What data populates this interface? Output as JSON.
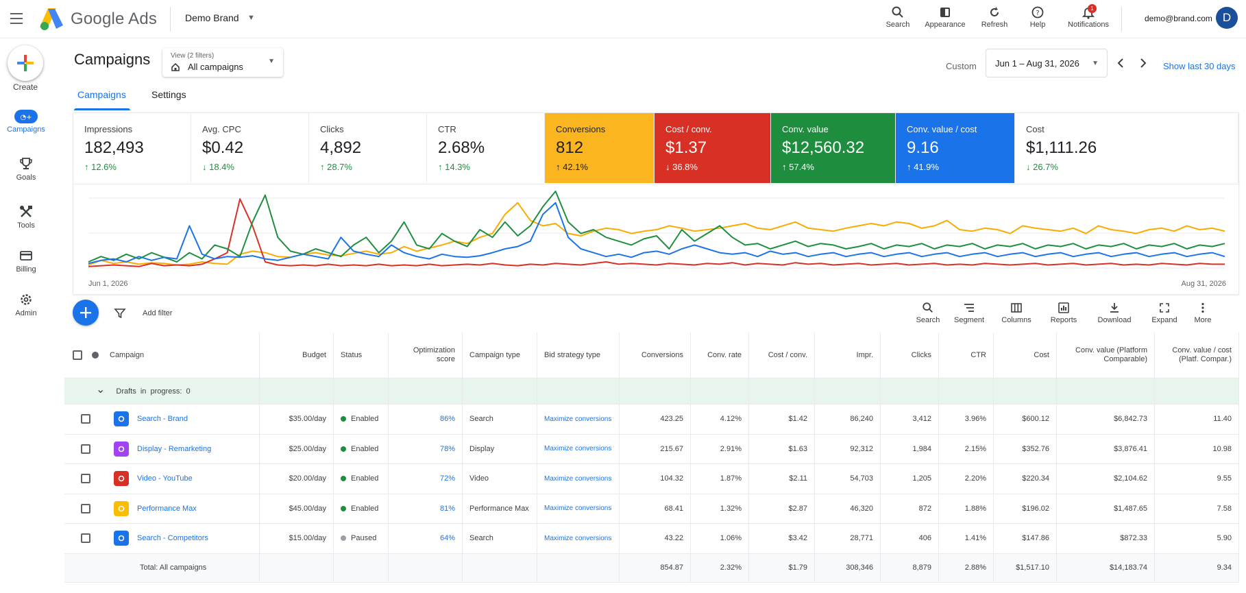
{
  "app": {
    "product_name": "Google Ads",
    "account_name": "Demo Brand",
    "user_email": "demo@brand.com",
    "avatar_letter": "D",
    "notification_count": "1"
  },
  "top_tools": [
    {
      "label": "Search",
      "icon": "search-icon"
    },
    {
      "label": "Appearance",
      "icon": "appearance-icon"
    },
    {
      "label": "Refresh",
      "icon": "refresh-icon"
    },
    {
      "label": "Help",
      "icon": "help-icon"
    },
    {
      "label": "Notifications",
      "icon": "bell-icon"
    }
  ],
  "rail": {
    "create_label": "Create",
    "items": [
      {
        "label": "Campaigns",
        "icon": "campaigns-icon"
      },
      {
        "label": "Goals",
        "icon": "trophy-icon"
      },
      {
        "label": "Tools",
        "icon": "tools-icon"
      },
      {
        "label": "Billing",
        "icon": "credit-card-icon"
      },
      {
        "label": "Admin",
        "icon": "gear-icon"
      }
    ]
  },
  "header": {
    "title": "Campaigns",
    "view_sub": "View (2 filters)",
    "view_value": "All campaigns",
    "custom_label": "Custom",
    "date_range": "Jun 1 – Aug 31, 2026",
    "last_30": "Show last 30 days"
  },
  "tabs": [
    {
      "label": "Campaigns"
    },
    {
      "label": "Settings"
    }
  ],
  "metrics": [
    {
      "label": "Impressions",
      "value": "182,493",
      "change": "↑ 12.6%",
      "bg": "#ffffff"
    },
    {
      "label": "Avg. CPC",
      "value": "$0.42",
      "change": "↓ 18.4%",
      "bg": "#ffffff"
    },
    {
      "label": "Clicks",
      "value": "4,892",
      "change": "↑ 28.7%",
      "bg": "#ffffff"
    },
    {
      "label": "CTR",
      "value": "2.68%",
      "change": "↑ 14.3%",
      "bg": "#ffffff"
    },
    {
      "label": "Conversions",
      "value": "812",
      "change": "↑ 42.1%",
      "bg": "#fbb61f"
    },
    {
      "label": "Cost / conv.",
      "value": "$1.37",
      "change": "↓ 36.8%",
      "bg": "#d93025"
    },
    {
      "label": "Conv. value",
      "value": "$12,560.32",
      "change": "↑ 57.4%",
      "bg": "#1e8e3e"
    },
    {
      "label": "Conv. value / cost",
      "value": "9.16",
      "change": "↑ 41.9%",
      "bg": "#1a73e8"
    },
    {
      "label": "Cost",
      "value": "$1,111.26",
      "change": "↓ 26.7%",
      "bg": "#ffffff"
    }
  ],
  "chart_data": {
    "type": "line",
    "x_start": "Jun 1, 2026",
    "x_end": "Aug 31, 2026",
    "colors": {
      "yellow": "#f9ab00",
      "red": "#d93025",
      "green": "#1e8e3e",
      "blue": "#1a73e8"
    },
    "series": [
      {
        "color": "yellow",
        "values": [
          4,
          10,
          6,
          8,
          5,
          7,
          6,
          4,
          5,
          8,
          6,
          5,
          18,
          22,
          20,
          15,
          14,
          18,
          20,
          17,
          16,
          19,
          22,
          18,
          20,
          28,
          22,
          26,
          30,
          35,
          32,
          40,
          45,
          70,
          85,
          62,
          55,
          58,
          45,
          42,
          48,
          52,
          50,
          45,
          48,
          50,
          55,
          52,
          48,
          50,
          52,
          55,
          58,
          52,
          50,
          55,
          60,
          52,
          50,
          48,
          52,
          55,
          58,
          55,
          60,
          58,
          52,
          55,
          62,
          50,
          48,
          52,
          50,
          45,
          55,
          52,
          50,
          48,
          52,
          45,
          55,
          50,
          48,
          45,
          50,
          52,
          48,
          55,
          50,
          52,
          48
        ]
      },
      {
        "color": "red",
        "values": [
          2,
          3,
          4,
          3,
          2,
          6,
          3,
          4,
          3,
          5,
          12,
          20,
          90,
          55,
          8,
          4,
          3,
          4,
          3,
          5,
          3,
          4,
          3,
          5,
          3,
          4,
          3,
          5,
          3,
          4,
          5,
          4,
          6,
          4,
          3,
          5,
          4,
          6,
          5,
          4,
          6,
          8,
          5,
          6,
          5,
          4,
          6,
          5,
          4,
          6,
          5,
          7,
          4,
          6,
          5,
          4,
          7,
          5,
          6,
          4,
          5,
          6,
          4,
          5,
          6,
          4,
          5,
          6,
          4,
          5,
          4,
          6,
          5,
          4,
          5,
          6,
          4,
          5,
          6,
          4,
          5,
          6,
          4,
          5,
          4,
          6,
          5,
          4,
          6,
          5,
          5
        ]
      },
      {
        "color": "green",
        "values": [
          8,
          15,
          10,
          18,
          12,
          20,
          14,
          8,
          20,
          12,
          30,
          25,
          15,
          60,
          95,
          40,
          22,
          18,
          25,
          20,
          15,
          30,
          40,
          20,
          35,
          60,
          30,
          25,
          45,
          35,
          28,
          50,
          40,
          60,
          42,
          55,
          80,
          100,
          60,
          45,
          50,
          40,
          35,
          30,
          38,
          42,
          25,
          50,
          35,
          45,
          55,
          40,
          30,
          32,
          25,
          30,
          35,
          28,
          32,
          30,
          25,
          28,
          32,
          25,
          30,
          28,
          32,
          25,
          30,
          28,
          32,
          25,
          30,
          28,
          32,
          25,
          30,
          28,
          32,
          25,
          30,
          28,
          32,
          25,
          30,
          28,
          32,
          25,
          30,
          28,
          32
        ]
      },
      {
        "color": "blue",
        "values": [
          6,
          10,
          12,
          8,
          15,
          10,
          14,
          12,
          55,
          18,
          12,
          15,
          14,
          16,
          12,
          10,
          14,
          18,
          15,
          12,
          40,
          22,
          18,
          15,
          30,
          20,
          15,
          12,
          18,
          15,
          14,
          16,
          20,
          25,
          28,
          35,
          70,
          85,
          40,
          25,
          20,
          15,
          18,
          14,
          20,
          22,
          18,
          25,
          30,
          25,
          20,
          18,
          20,
          15,
          22,
          18,
          20,
          15,
          18,
          20,
          15,
          18,
          20,
          15,
          18,
          20,
          15,
          18,
          20,
          15,
          18,
          20,
          15,
          18,
          20,
          15,
          18,
          20,
          15,
          18,
          20,
          15,
          18,
          20,
          15,
          18,
          20,
          15,
          18,
          20,
          15
        ]
      }
    ]
  },
  "table_toolbar": {
    "add_filter": "Add filter",
    "tools": [
      {
        "label": "Search",
        "icon": "search-icon"
      },
      {
        "label": "Segment",
        "icon": "segment-icon"
      },
      {
        "label": "Columns",
        "icon": "columns-icon"
      },
      {
        "label": "Reports",
        "icon": "reports-icon"
      },
      {
        "label": "Download",
        "icon": "download-icon"
      },
      {
        "label": "Expand",
        "icon": "expand-icon"
      },
      {
        "label": "More",
        "icon": "more-vert-icon"
      }
    ]
  },
  "table": {
    "columns": [
      "Campaign",
      "Budget",
      "Status",
      "Optimization score",
      "Campaign type",
      "Bid strategy type",
      "Conversions",
      "Conv. rate",
      "Cost / conv.",
      "Impr.",
      "Clicks",
      "CTR",
      "Cost",
      "Conv. value (Platform Comparable)",
      "Conv. value / cost (Platf. Compar.)"
    ],
    "drafts": "Drafts  in  progress:  0",
    "rows": [
      {
        "name": "Search - Brand",
        "icon": "search-campaign-icon",
        "icon_color": "#1a73e8",
        "budget": "$35.00/day",
        "status": "Enabled",
        "status_color": "#1e8e3e",
        "score": "86%",
        "type": "Search",
        "bid": "Maximize conversions",
        "conversions": "423.25",
        "conv_rate": "4.12%",
        "cost_conv": "$1.42",
        "impr": "86,240",
        "clicks": "3,412",
        "ctr": "3.96%",
        "cost": "$600.12",
        "conv_value": "$6,842.73",
        "value_cost": "11.40"
      },
      {
        "name": "Display - Remarketing",
        "icon": "display-campaign-icon",
        "icon_color": "#a142f4",
        "budget": "$25.00/day",
        "status": "Enabled",
        "status_color": "#1e8e3e",
        "score": "78%",
        "type": "Display",
        "bid": "Maximize conversions",
        "conversions": "215.67",
        "conv_rate": "2.91%",
        "cost_conv": "$1.63",
        "impr": "92,312",
        "clicks": "1,984",
        "ctr": "2.15%",
        "cost": "$352.76",
        "conv_value": "$3,876.41",
        "value_cost": "10.98"
      },
      {
        "name": "Video - YouTube",
        "icon": "video-campaign-icon",
        "icon_color": "#d93025",
        "budget": "$20.00/day",
        "status": "Enabled",
        "status_color": "#1e8e3e",
        "score": "72%",
        "type": "Video",
        "bid": "Maximize conversions",
        "conversions": "104.32",
        "conv_rate": "1.87%",
        "cost_conv": "$2.11",
        "impr": "54,703",
        "clicks": "1,205",
        "ctr": "2.20%",
        "cost": "$220.34",
        "conv_value": "$2,104.62",
        "value_cost": "9.55"
      },
      {
        "name": "Performance Max",
        "icon": "performance-max-icon",
        "icon_color": "#fbbc04",
        "budget": "$45.00/day",
        "status": "Enabled",
        "status_color": "#1e8e3e",
        "score": "81%",
        "type": "Performance Max",
        "bid": "Maximize conversions",
        "conversions": "68.41",
        "conv_rate": "1.32%",
        "cost_conv": "$2.87",
        "impr": "46,320",
        "clicks": "872",
        "ctr": "1.88%",
        "cost": "$196.02",
        "conv_value": "$1,487.65",
        "value_cost": "7.58"
      },
      {
        "name": "Search - Competitors",
        "icon": "search-campaign-icon",
        "icon_color": "#1a73e8",
        "budget": "$15.00/day",
        "status": "Paused",
        "status_color": "#9aa0a6",
        "score": "64%",
        "type": "Search",
        "bid": "Maximize conversions",
        "conversions": "43.22",
        "conv_rate": "1.06%",
        "cost_conv": "$3.42",
        "impr": "28,771",
        "clicks": "406",
        "ctr": "1.41%",
        "cost": "$147.86",
        "conv_value": "$872.33",
        "value_cost": "5.90"
      }
    ],
    "total": {
      "label": "Total: All campaigns",
      "conversions": "854.87",
      "conv_rate": "2.32%",
      "cost_conv": "$1.79",
      "impr": "308,346",
      "clicks": "8,879",
      "ctr": "2.88%",
      "cost": "$1,517.10",
      "conv_value": "$14,183.74",
      "value_cost": "9.34"
    }
  }
}
